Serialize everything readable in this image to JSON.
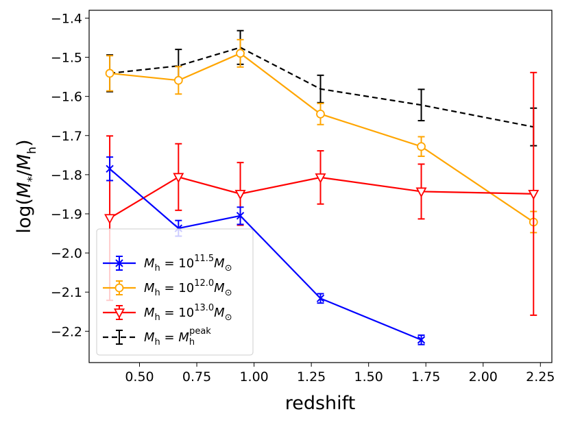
{
  "chart_data": {
    "type": "line",
    "title": "",
    "xlabel": "redshift",
    "ylabel": "log(M*/Mh)",
    "xlim": [
      0.28,
      2.3
    ],
    "ylim": [
      -2.28,
      -1.38
    ],
    "x_ticks": [
      0.5,
      0.75,
      1.0,
      1.25,
      1.5,
      1.75,
      2.0,
      2.25
    ],
    "x_tick_labels": [
      "0.50",
      "0.75",
      "1.00",
      "1.25",
      "1.50",
      "1.75",
      "2.00",
      "2.25"
    ],
    "y_ticks": [
      -1.4,
      -1.5,
      -1.6,
      -1.7,
      -1.8,
      -1.9,
      -2.0,
      -2.1,
      -2.2
    ],
    "y_tick_labels": [
      "−1.4",
      "−1.5",
      "−1.6",
      "−1.7",
      "−1.8",
      "−1.9",
      "−2.0",
      "−2.1",
      "−2.2"
    ],
    "legend_position": "lower-left",
    "series": [
      {
        "name": "Mh = 10^11.5 M⊙",
        "legend_mantissa": "10",
        "legend_exponent": "11.5",
        "color": "#0000ff",
        "marker": "x",
        "linestyle": "solid",
        "x": [
          0.37,
          0.67,
          0.94,
          1.29,
          1.73
        ],
        "y": [
          -1.785,
          -1.937,
          -1.905,
          -2.116,
          -2.222
        ],
        "yerr": [
          0.03,
          0.02,
          0.022,
          0.012,
          0.012
        ]
      },
      {
        "name": "Mh = 10^12.0 M⊙",
        "legend_mantissa": "10",
        "legend_exponent": "12.0",
        "color": "#ffa500",
        "marker": "o",
        "linestyle": "solid",
        "x": [
          0.37,
          0.67,
          0.94,
          1.29,
          1.73,
          2.22
        ],
        "y": [
          -1.541,
          -1.559,
          -1.49,
          -1.645,
          -1.728,
          -1.921
        ],
        "yerr": [
          0.045,
          0.035,
          0.035,
          0.027,
          0.025,
          0.027
        ]
      },
      {
        "name": "Mh = 10^13.0 M⊙",
        "legend_mantissa": "10",
        "legend_exponent": "13.0",
        "color": "#ff0000",
        "marker": "v",
        "linestyle": "solid",
        "x": [
          0.37,
          0.67,
          0.94,
          1.29,
          1.73,
          2.22
        ],
        "y": [
          -1.911,
          -1.806,
          -1.849,
          -1.807,
          -1.843,
          -1.849
        ],
        "yerr": [
          0.21,
          0.085,
          0.08,
          0.068,
          0.07,
          0.31
        ]
      },
      {
        "name": "Mh = Mh^peak",
        "legend_superscript": "peak",
        "color": "#000000",
        "marker": "none",
        "linestyle": "dashed",
        "x": [
          0.37,
          0.67,
          0.94,
          1.29,
          1.73,
          2.22
        ],
        "y": [
          -1.541,
          -1.522,
          -1.475,
          -1.581,
          -1.622,
          -1.678
        ],
        "yerr": [
          0.047,
          0.042,
          0.043,
          0.035,
          0.04,
          0.048
        ]
      }
    ]
  }
}
